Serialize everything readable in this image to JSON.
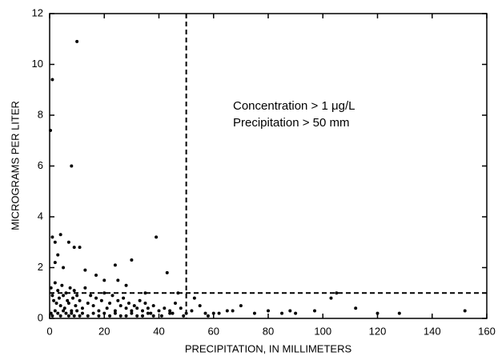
{
  "chart_data": {
    "type": "scatter",
    "x_label": "PRECIPITATION, IN MILLIMETERS",
    "y_label": "MICROGRAMS PER LITER",
    "annotations": [
      "Concentration > 1 μg/L",
      "Precipitation > 50 mm"
    ],
    "color": "#000000",
    "xlim": [
      0,
      160
    ],
    "xticks": [
      0,
      20,
      40,
      60,
      80,
      100,
      120,
      140,
      160
    ],
    "ylim": [
      0,
      12
    ],
    "yticks": [
      0,
      2,
      4,
      6,
      8,
      10,
      12
    ],
    "vline": 50,
    "hline": 1,
    "x": [
      10,
      1,
      0.3,
      8,
      39,
      1,
      2,
      4,
      7,
      9,
      11,
      30,
      24,
      43,
      3,
      5,
      2,
      13,
      17,
      20,
      105,
      103,
      112,
      152,
      128,
      120,
      97,
      90,
      80,
      88,
      70,
      67,
      60,
      55,
      53,
      47,
      46,
      35,
      28,
      25,
      0.5,
      1,
      1.5,
      2,
      2.5,
      3,
      3.5,
      4,
      4.5,
      5,
      5.5,
      6,
      6.5,
      7,
      7.5,
      8,
      8.5,
      9,
      9.5,
      10,
      11,
      12,
      13,
      14,
      15,
      16,
      17,
      18,
      19,
      20,
      21,
      22,
      23,
      24,
      25,
      26,
      27,
      28,
      29,
      30,
      31,
      32,
      33,
      34,
      35,
      36,
      37,
      38,
      40,
      42,
      44,
      45,
      48,
      50,
      52,
      57,
      62,
      65,
      75,
      85,
      0.5,
      1,
      2,
      3,
      4,
      5,
      6,
      7,
      8,
      9,
      10,
      11,
      12,
      14,
      16,
      18,
      20,
      22,
      24,
      26,
      28,
      30,
      32,
      34,
      36,
      38,
      41,
      44,
      49,
      58
    ],
    "values": [
      10.9,
      9.4,
      7.4,
      6.0,
      3.2,
      3.2,
      3.0,
      3.3,
      3.0,
      2.8,
      2.8,
      2.3,
      2.1,
      1.8,
      2.5,
      2.0,
      2.2,
      1.9,
      1.7,
      1.5,
      1.0,
      0.8,
      0.4,
      0.3,
      0.2,
      0.2,
      0.3,
      0.2,
      0.3,
      0.3,
      0.5,
      0.3,
      0.2,
      0.5,
      0.8,
      1.0,
      0.6,
      1.0,
      1.3,
      1.5,
      1.2,
      0.9,
      0.7,
      1.4,
      0.6,
      1.1,
      0.8,
      0.5,
      1.3,
      0.9,
      0.4,
      1.0,
      0.7,
      0.6,
      1.2,
      0.3,
      0.8,
      1.1,
      0.5,
      0.9,
      0.7,
      0.4,
      1.2,
      0.6,
      0.9,
      0.5,
      0.8,
      0.3,
      0.7,
      1.0,
      0.4,
      0.6,
      0.9,
      0.3,
      0.7,
      0.5,
      0.8,
      0.4,
      0.6,
      0.3,
      0.5,
      0.4,
      0.7,
      0.3,
      0.6,
      0.4,
      0.2,
      0.5,
      0.3,
      0.4,
      0.3,
      0.2,
      0.4,
      0.2,
      0.3,
      0.2,
      0.2,
      0.3,
      0.2,
      0.2,
      0.2,
      0.1,
      0.3,
      0.2,
      0.1,
      0.3,
      0.2,
      0.1,
      0.2,
      0.1,
      0.3,
      0.1,
      0.2,
      0.1,
      0.2,
      0.1,
      0.2,
      0.1,
      0.2,
      0.1,
      0.1,
      0.2,
      0.1,
      0.1,
      0.2,
      0.1,
      0.1,
      0.2,
      0.1,
      0.1
    ]
  }
}
